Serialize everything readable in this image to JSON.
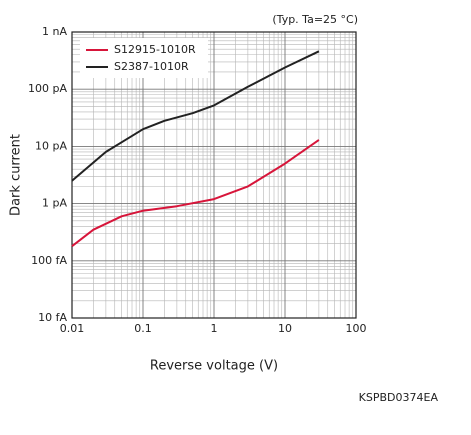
{
  "chart_data": {
    "type": "line",
    "annotation": "(Typ. Ta=25 °C)",
    "ylabel": "Dark current",
    "xlabel": "Reverse voltage (V)",
    "code": "KSPBD0374EA",
    "xscale": "log",
    "yscale": "log",
    "grid": true,
    "minor_grid": true,
    "legend": "upper left",
    "xlim": [
      0.01,
      100
    ],
    "xticks": [
      0.01,
      0.1,
      1,
      10,
      100
    ],
    "ylim": [
      0.01,
      1000
    ],
    "yticks": [
      {
        "value": 0.01,
        "label": "10 fA"
      },
      {
        "value": 0.1,
        "label": "100 fA"
      },
      {
        "value": 1,
        "label": "1 pA"
      },
      {
        "value": 10,
        "label": "10 pA"
      },
      {
        "value": 100,
        "label": "100 pA"
      },
      {
        "value": 1000,
        "label": "1 nA"
      }
    ],
    "series": [
      {
        "name": "S12915-1010R",
        "color": "#d7153a",
        "x": [
          0.01,
          0.02,
          0.05,
          0.1,
          0.3,
          1,
          3,
          10,
          30
        ],
        "values": [
          0.18,
          0.35,
          0.6,
          0.75,
          0.9,
          1.2,
          2.0,
          5,
          13
        ]
      },
      {
        "name": "S2387-1010R",
        "color": "#222222",
        "x": [
          0.01,
          0.03,
          0.1,
          0.2,
          0.5,
          1,
          3,
          10,
          30
        ],
        "values": [
          2.5,
          8,
          20,
          28,
          38,
          52,
          110,
          240,
          460
        ]
      }
    ]
  }
}
